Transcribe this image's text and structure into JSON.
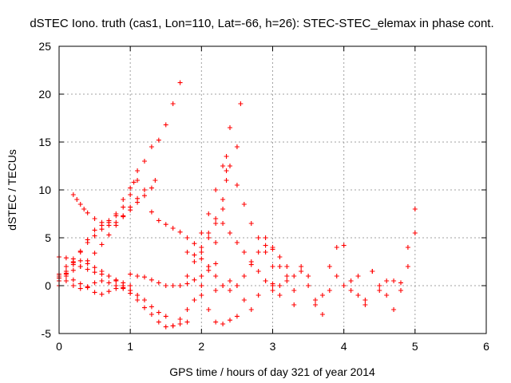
{
  "chart_data": {
    "type": "scatter",
    "title": "dSTEC Iono. truth (cas1, Lon=110, Lat=-66, h=26): STEC-STEC_elemax in phase cont.",
    "xlabel": "GPS time / hours of day 321 of year 2014",
    "ylabel": "dSTEC  / TECUs",
    "xlim": [
      0,
      6
    ],
    "ylim": [
      -5,
      25
    ],
    "x_ticks": [
      0,
      1,
      2,
      3,
      4,
      5,
      6
    ],
    "y_ticks": [
      -5,
      0,
      5,
      10,
      15,
      20,
      25
    ],
    "x_tick_labels": [
      "0",
      "1",
      "2",
      "3",
      "4",
      "5",
      "6"
    ],
    "y_tick_labels": [
      "-5",
      "0",
      "5",
      "10",
      "15",
      "20",
      "25"
    ],
    "grid": true,
    "marker": "+",
    "color": "#ff0000",
    "series": [
      {
        "x": [
          0.0,
          0.1,
          0.2,
          0.3,
          0.4,
          0.5,
          0.6,
          0.7,
          0.8,
          0.9,
          1.0,
          1.1,
          1.2,
          1.3,
          1.4,
          1.5,
          1.6,
          1.7
        ],
        "y": [
          0.0,
          1.2,
          2.4,
          3.6,
          4.8,
          5.8,
          6.3,
          6.8,
          7.5,
          9.0,
          10.2,
          11.0,
          13.0,
          14.5,
          15.2,
          16.8,
          19.0,
          21.2
        ]
      },
      {
        "x": [
          0.0,
          0.1,
          0.2,
          0.3,
          0.4,
          0.5,
          0.6,
          0.7,
          0.8,
          0.9,
          1.0,
          1.05,
          1.1
        ],
        "y": [
          0.5,
          1.5,
          2.5,
          3.5,
          4.5,
          5.2,
          5.9,
          6.6,
          7.3,
          8.2,
          9.5,
          10.8,
          12.0
        ]
      },
      {
        "x": [
          0.0,
          0.1,
          0.2,
          0.3,
          0.4,
          0.5,
          0.6,
          0.7,
          0.8,
          0.9,
          1.0,
          1.1,
          1.2
        ],
        "y": [
          1.0,
          1.3,
          1.6,
          2.0,
          2.6,
          3.4,
          4.3,
          5.3,
          6.3,
          7.2,
          8.2,
          9.1,
          10.0
        ]
      },
      {
        "x": [
          0.2,
          0.25,
          0.3,
          0.35,
          0.4,
          0.5,
          0.6,
          0.7,
          0.8,
          0.9,
          1.0,
          1.1,
          1.2,
          1.3,
          1.35
        ],
        "y": [
          9.5,
          9.0,
          8.5,
          8.0,
          7.6,
          7.0,
          6.6,
          6.3,
          6.6,
          7.3,
          7.9,
          8.7,
          9.4,
          10.2,
          11.0
        ]
      },
      {
        "x": [
          0.0,
          0.1,
          0.2,
          0.3,
          0.4,
          0.5,
          0.6,
          0.7,
          0.8,
          0.9,
          1.0,
          1.1
        ],
        "y": [
          3.0,
          2.9,
          2.8,
          2.6,
          2.3,
          1.9,
          1.5,
          1.0,
          0.5,
          0.0,
          -0.5,
          -1.0
        ]
      },
      {
        "x": [
          0.1,
          0.2,
          0.3,
          0.4,
          0.5,
          0.6,
          0.7,
          0.8,
          0.9,
          1.0
        ],
        "y": [
          2.0,
          2.2,
          2.0,
          1.7,
          1.4,
          1.2,
          1.0,
          0.6,
          0.3,
          0.0
        ]
      },
      {
        "x": [
          0.0,
          0.1,
          0.2,
          0.3,
          0.4,
          0.5,
          0.6,
          0.7,
          0.8,
          0.9,
          1.0,
          1.1,
          1.2,
          1.3,
          1.4,
          1.5
        ],
        "y": [
          1.2,
          1.0,
          0.6,
          0.2,
          -0.2,
          -0.7,
          -0.9,
          -0.6,
          -0.3,
          -0.2,
          -0.5,
          -1.0,
          -1.5,
          -2.2,
          -2.8,
          -3.2
        ]
      },
      {
        "x": [
          0.0,
          0.1,
          0.2,
          0.3,
          0.4,
          0.5,
          0.6,
          0.7,
          0.8,
          0.9,
          1.0,
          1.1,
          1.2,
          1.3,
          1.4,
          1.5,
          1.6,
          1.7,
          1.8
        ],
        "y": [
          0.8,
          0.5,
          0.0,
          -0.3,
          -0.1,
          0.3,
          0.5,
          0.3,
          0.0,
          -0.3,
          -0.8,
          -1.5,
          -2.3,
          -3.0,
          -3.8,
          -4.3,
          -4.2,
          -4.0,
          -3.8
        ]
      },
      {
        "x": [
          1.0,
          1.1,
          1.2,
          1.3,
          1.4,
          1.5,
          1.6,
          1.7,
          1.8,
          1.9,
          2.0,
          2.1,
          2.2
        ],
        "y": [
          1.2,
          1.0,
          0.9,
          0.6,
          0.3,
          0.0,
          0.0,
          0.0,
          0.2,
          0.6,
          1.0,
          1.6,
          2.3
        ]
      },
      {
        "x": [
          1.3,
          1.4,
          1.5,
          1.6,
          1.7,
          1.8,
          1.9,
          2.0
        ],
        "y": [
          7.7,
          6.8,
          6.4,
          6.0,
          5.6,
          5.0,
          4.4,
          3.5
        ]
      },
      {
        "x": [
          1.6,
          1.7,
          1.8,
          1.9,
          2.0,
          2.1,
          2.2,
          2.3,
          2.35
        ],
        "y": [
          -4.2,
          -3.5,
          -2.5,
          -1.5,
          0.0,
          2.0,
          4.5,
          8.0,
          11.0
        ]
      },
      {
        "x": [
          1.8,
          1.9,
          2.0,
          2.1,
          2.2,
          2.3,
          2.35,
          2.4,
          2.5,
          2.55
        ],
        "y": [
          1.0,
          2.5,
          4.0,
          5.5,
          7.0,
          9.0,
          12.0,
          16.5,
          14.5,
          19.0
        ]
      },
      {
        "x": [
          2.0,
          2.1,
          2.2,
          2.3,
          2.35,
          2.4,
          2.5,
          2.6,
          2.7,
          2.8,
          2.9,
          3.0
        ],
        "y": [
          5.5,
          7.5,
          10.0,
          12.5,
          13.5,
          12.5,
          10.5,
          8.5,
          6.5,
          5.0,
          3.5,
          2.0
        ]
      },
      {
        "x": [
          1.8,
          1.9,
          2.0,
          2.1,
          2.2,
          2.3,
          2.4,
          2.5,
          2.6,
          2.7,
          2.8,
          2.9,
          3.0,
          3.1,
          3.2,
          3.3
        ],
        "y": [
          3.5,
          3.2,
          2.8,
          2.0,
          1.0,
          0.0,
          -0.5,
          0.0,
          1.0,
          2.2,
          3.5,
          4.2,
          3.8,
          3.0,
          2.0,
          1.0
        ]
      },
      {
        "x": [
          2.1,
          2.2,
          2.3,
          2.4,
          2.5,
          2.6,
          2.7,
          2.8,
          2.9,
          3.0
        ],
        "y": [
          5.0,
          6.5,
          6.5,
          5.5,
          4.5,
          3.5,
          2.5,
          1.5,
          0.5,
          -0.5
        ]
      },
      {
        "x": [
          2.0,
          2.1,
          2.2,
          2.3,
          2.4,
          2.5
        ],
        "y": [
          -1.0,
          -2.5,
          -3.8,
          -4.0,
          -3.6,
          -3.2
        ]
      },
      {
        "x": [
          2.2,
          2.3,
          2.4,
          2.5,
          2.6,
          2.7,
          2.8,
          2.9,
          3.0,
          3.1
        ],
        "y": [
          -0.5,
          0.0,
          0.5,
          0.0,
          -1.5,
          -2.5,
          -1.0,
          0.5,
          0.2,
          0.0
        ]
      },
      {
        "x": [
          2.9,
          3.0,
          3.1,
          3.2,
          3.3,
          3.4,
          3.5,
          3.6,
          3.7,
          3.8,
          3.9,
          4.0,
          4.1,
          4.2,
          4.3,
          4.4,
          4.5,
          4.6,
          4.7,
          4.8,
          4.9,
          5.0
        ],
        "y": [
          5.0,
          4.0,
          2.0,
          1.0,
          -0.5,
          2.0,
          1.0,
          -2.0,
          -1.0,
          2.0,
          4.0,
          4.2,
          0.5,
          -1.0,
          -2.0,
          1.5,
          0.0,
          -1.0,
          0.5,
          -0.5,
          4.0,
          8.0
        ]
      },
      {
        "x": [
          3.0,
          3.1,
          3.2,
          3.3,
          3.4,
          3.5,
          3.6,
          3.7,
          3.8,
          3.9,
          4.0,
          4.1,
          4.2,
          4.3,
          4.4,
          4.5,
          4.6,
          4.7,
          4.8,
          4.9,
          5.0
        ],
        "y": [
          0.0,
          -1.0,
          0.5,
          -2.0,
          1.5,
          0.0,
          -1.5,
          -3.0,
          -0.5,
          1.0,
          0.0,
          -0.5,
          1.0,
          -1.5,
          1.5,
          -0.5,
          0.5,
          -2.5,
          0.3,
          2.0,
          5.5
        ]
      }
    ]
  }
}
